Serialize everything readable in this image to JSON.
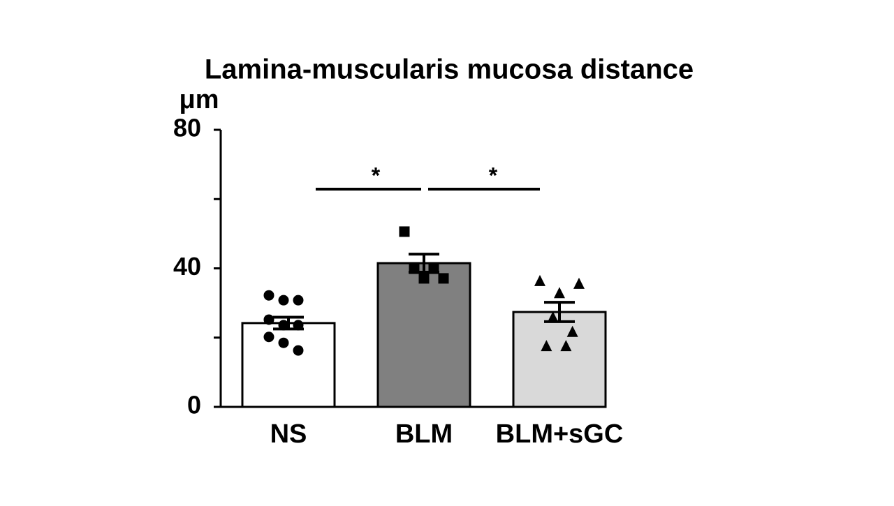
{
  "chart_data": {
    "type": "bar",
    "title": "Lamina-muscularis mucosa distance",
    "ylabel": "μm",
    "categories": [
      "NS",
      "BLM",
      "BLM+sGC"
    ],
    "values": [
      24.2,
      41.5,
      27.4
    ],
    "errors": [
      1.7,
      2.6,
      2.8
    ],
    "colors": [
      "#ffffff",
      "#808080",
      "#d9d9d9"
    ],
    "points": [
      [
        32.2,
        30.8,
        30.8,
        25.2,
        23.6,
        23.6,
        20.2,
        18.5,
        16.3
      ],
      [
        50.6,
        39.9,
        39.9,
        37.1,
        37.1
      ],
      [
        36.3,
        32.8,
        35.5,
        25.8,
        21.6,
        17.5,
        17.5
      ]
    ],
    "markers": [
      "circle",
      "square",
      "triangle"
    ],
    "ylim": [
      0,
      80
    ],
    "yticks": [
      0,
      40,
      80
    ],
    "minor_yticks": [
      20,
      60
    ],
    "annotations": [
      "*",
      "*"
    ]
  }
}
